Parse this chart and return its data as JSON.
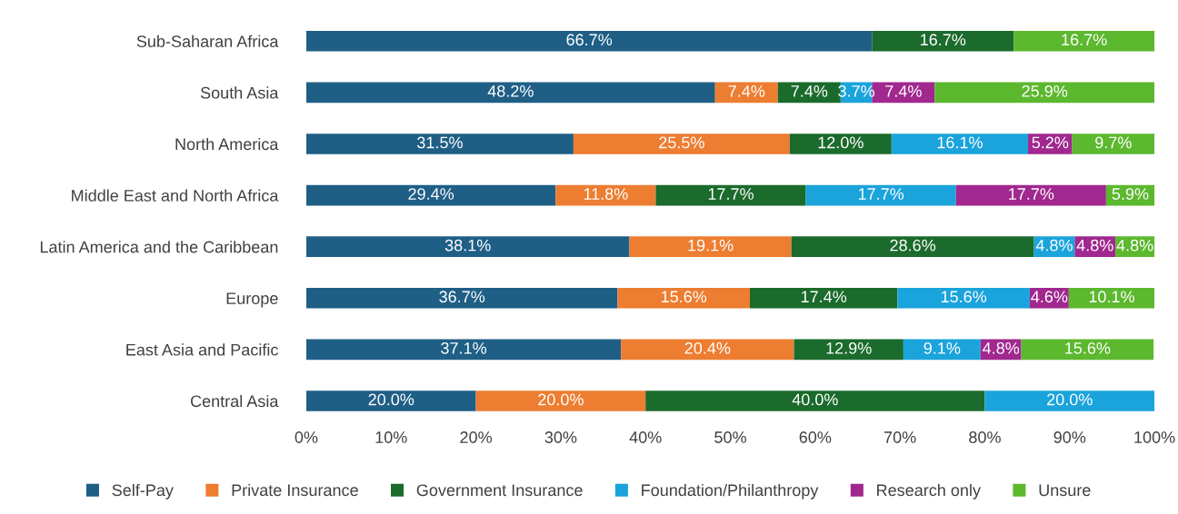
{
  "chart_data": {
    "type": "bar",
    "orientation": "horizontal",
    "stacked": true,
    "legend": "bottom",
    "grid": false,
    "categories": [
      "Sub-Saharan Africa",
      "South Asia",
      "North America",
      "Middle East and North Africa",
      "Latin America and the Caribbean",
      "Europe",
      "East Asia and Pacific",
      "Central Asia"
    ],
    "xlim": [
      0,
      100
    ],
    "xticks": [
      {
        "value": 0,
        "label": "0%"
      },
      {
        "value": 10,
        "label": "10%"
      },
      {
        "value": 20,
        "label": "20%"
      },
      {
        "value": 30,
        "label": "30%"
      },
      {
        "value": 40,
        "label": "40%"
      },
      {
        "value": 50,
        "label": "50%"
      },
      {
        "value": 60,
        "label": "60%"
      },
      {
        "value": 70,
        "label": "70%"
      },
      {
        "value": 80,
        "label": "80%"
      },
      {
        "value": 90,
        "label": "90%"
      },
      {
        "value": 100,
        "label": "100%"
      }
    ],
    "series": [
      {
        "name": "Self-Pay",
        "color": "#1f5f86",
        "values": [
          66.7,
          48.2,
          31.5,
          29.4,
          38.1,
          36.7,
          37.1,
          20.0
        ],
        "value_labels": [
          "66.7%",
          "48.2%",
          "31.5%",
          "29.4%",
          "38.1%",
          "36.7%",
          "37.1%",
          "20.0%"
        ]
      },
      {
        "name": "Private Insurance",
        "color": "#ed7d31",
        "values": [
          null,
          7.4,
          25.5,
          11.8,
          19.1,
          15.6,
          20.4,
          20.0
        ],
        "value_labels": [
          null,
          "7.4%",
          "25.5%",
          "11.8%",
          "19.1%",
          "15.6%",
          "20.4%",
          "20.0%"
        ]
      },
      {
        "name": "Government Insurance",
        "color": "#1b6b2c",
        "values": [
          16.7,
          7.4,
          12.0,
          17.7,
          28.6,
          17.4,
          12.9,
          40.0
        ],
        "value_labels": [
          "16.7%",
          "7.4%",
          "12.0%",
          "17.7%",
          "28.6%",
          "17.4%",
          "12.9%",
          "40.0%"
        ]
      },
      {
        "name": "Foundation/Philanthropy",
        "color": "#1ba3dc",
        "values": [
          null,
          3.7,
          16.1,
          17.7,
          4.8,
          15.6,
          9.1,
          20.0
        ],
        "value_labels": [
          null,
          "3.7%",
          "16.1%",
          "17.7%",
          "4.8%",
          "15.6%",
          "9.1%",
          "20.0%"
        ]
      },
      {
        "name": "Research only",
        "color": "#a0288f",
        "values": [
          null,
          7.4,
          5.2,
          17.7,
          4.8,
          4.6,
          4.8,
          null
        ],
        "value_labels": [
          null,
          "7.4%",
          "5.2%",
          "17.7%",
          "4.8%",
          "4.6%",
          "4.8%",
          null
        ]
      },
      {
        "name": "Unsure",
        "color": "#5cb82e",
        "values": [
          16.7,
          25.9,
          9.7,
          5.9,
          4.8,
          10.1,
          15.6,
          null
        ],
        "value_labels": [
          "16.7%",
          "25.9%",
          "9.7%",
          "5.9%",
          "4.8%",
          "10.1%",
          "15.6%",
          null
        ]
      }
    ]
  }
}
